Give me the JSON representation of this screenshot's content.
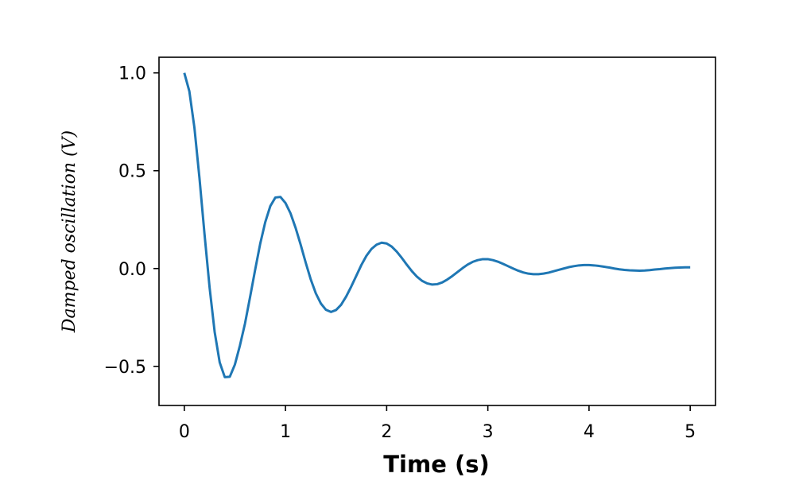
{
  "chart_data": {
    "type": "line",
    "xlabel": "Time (s)",
    "ylabel": "Damped oscillation (V)",
    "xlim": [
      -0.25,
      5.25
    ],
    "ylim": [
      -0.7,
      1.08
    ],
    "xticks": [
      0,
      1,
      2,
      3,
      4,
      5
    ],
    "xtick_labels": [
      "0",
      "1",
      "2",
      "3",
      "4",
      "5"
    ],
    "yticks": [
      -0.5,
      0.0,
      0.5,
      1.0
    ],
    "ytick_labels": [
      "−0.5",
      "0.0",
      "0.5",
      "1.0"
    ],
    "grid": false,
    "series": [
      {
        "color": "#1f77b4",
        "x": [
          0.0,
          0.05,
          0.1,
          0.15,
          0.2,
          0.25,
          0.3,
          0.35,
          0.4,
          0.45,
          0.5,
          0.55,
          0.6,
          0.65,
          0.7,
          0.75,
          0.8,
          0.85,
          0.9,
          0.95,
          1.0,
          1.05,
          1.1,
          1.15,
          1.2,
          1.25,
          1.3,
          1.35,
          1.4,
          1.45,
          1.5,
          1.55,
          1.6,
          1.65,
          1.7,
          1.75,
          1.8,
          1.85,
          1.9,
          1.95,
          2.0,
          2.05,
          2.1,
          2.15,
          2.2,
          2.25,
          2.3,
          2.35,
          2.4,
          2.45,
          2.5,
          2.55,
          2.6,
          2.65,
          2.7,
          2.75,
          2.8,
          2.85,
          2.9,
          2.95,
          3.0,
          3.05,
          3.1,
          3.15,
          3.2,
          3.25,
          3.3,
          3.35,
          3.4,
          3.45,
          3.5,
          3.55,
          3.6,
          3.65,
          3.7,
          3.75,
          3.8,
          3.85,
          3.9,
          3.95,
          4.0,
          4.05,
          4.1,
          4.15,
          4.2,
          4.25,
          4.3,
          4.35,
          4.4,
          4.45,
          4.5,
          4.55,
          4.6,
          4.65,
          4.7,
          4.75,
          4.8,
          4.85,
          4.9,
          4.95,
          5.0
        ],
        "y": [
          1.0,
          0.906,
          0.72,
          0.462,
          0.175,
          -0.097,
          -0.324,
          -0.48,
          -0.555,
          -0.553,
          -0.491,
          -0.393,
          -0.281,
          -0.146,
          -0.007,
          0.126,
          0.237,
          0.319,
          0.363,
          0.366,
          0.335,
          0.282,
          0.208,
          0.122,
          0.03,
          -0.056,
          -0.127,
          -0.179,
          -0.211,
          -0.222,
          -0.212,
          -0.185,
          -0.143,
          -0.092,
          -0.037,
          0.018,
          0.065,
          0.1,
          0.122,
          0.132,
          0.128,
          0.112,
          0.086,
          0.054,
          0.019,
          -0.014,
          -0.042,
          -0.063,
          -0.076,
          -0.082,
          -0.08,
          -0.071,
          -0.056,
          -0.038,
          -0.018,
          0.002,
          0.02,
          0.034,
          0.043,
          0.048,
          0.048,
          0.043,
          0.035,
          0.024,
          0.012,
          0.0,
          -0.011,
          -0.02,
          -0.026,
          -0.029,
          -0.029,
          -0.026,
          -0.021,
          -0.014,
          -0.007,
          0.0,
          0.007,
          0.012,
          0.016,
          0.018,
          0.018,
          0.016,
          0.013,
          0.009,
          0.005,
          0.0,
          -0.004,
          -0.007,
          -0.009,
          -0.01,
          -0.011,
          -0.01,
          -0.008,
          -0.005,
          -0.003,
          0.0,
          0.002,
          0.004,
          0.005,
          0.006,
          0.006
        ]
      }
    ]
  }
}
